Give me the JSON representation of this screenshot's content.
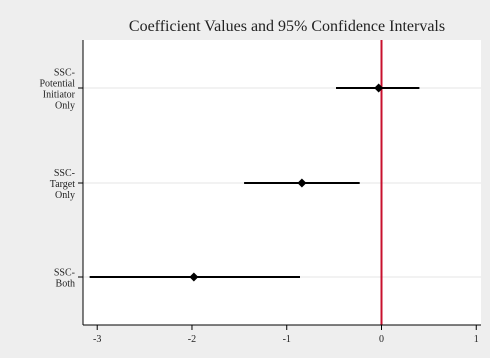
{
  "chart_data": {
    "type": "coefficient-plot",
    "title": "Coefficient Values and 95% Confidence Intervals",
    "xlim": [
      -3.15,
      1.05
    ],
    "x_ticks": [
      -3,
      -2,
      -1,
      0,
      1
    ],
    "x_tick_labels": [
      "-3",
      "-2",
      "-1",
      "0",
      "1"
    ],
    "reference_line": {
      "x": 0,
      "color": "#c8102e"
    },
    "categories": [
      {
        "label_lines": [
          "SSC-",
          "Potential",
          "Initiator",
          "Only"
        ],
        "estimate": -0.03,
        "ci_low": -0.48,
        "ci_high": 0.4
      },
      {
        "label_lines": [
          "SSC-",
          "Target",
          "Only"
        ],
        "estimate": -0.84,
        "ci_low": -1.45,
        "ci_high": -0.23
      },
      {
        "label_lines": [
          "SSC-",
          "Both"
        ],
        "estimate": -1.98,
        "ci_low": -3.08,
        "ci_high": -0.86
      }
    ],
    "colors": {
      "background": "#eeeeee",
      "plot_area": "#ffffff",
      "marker": "#000000",
      "gridline": "#e6e6e6"
    },
    "grid": "horizontal-light"
  }
}
